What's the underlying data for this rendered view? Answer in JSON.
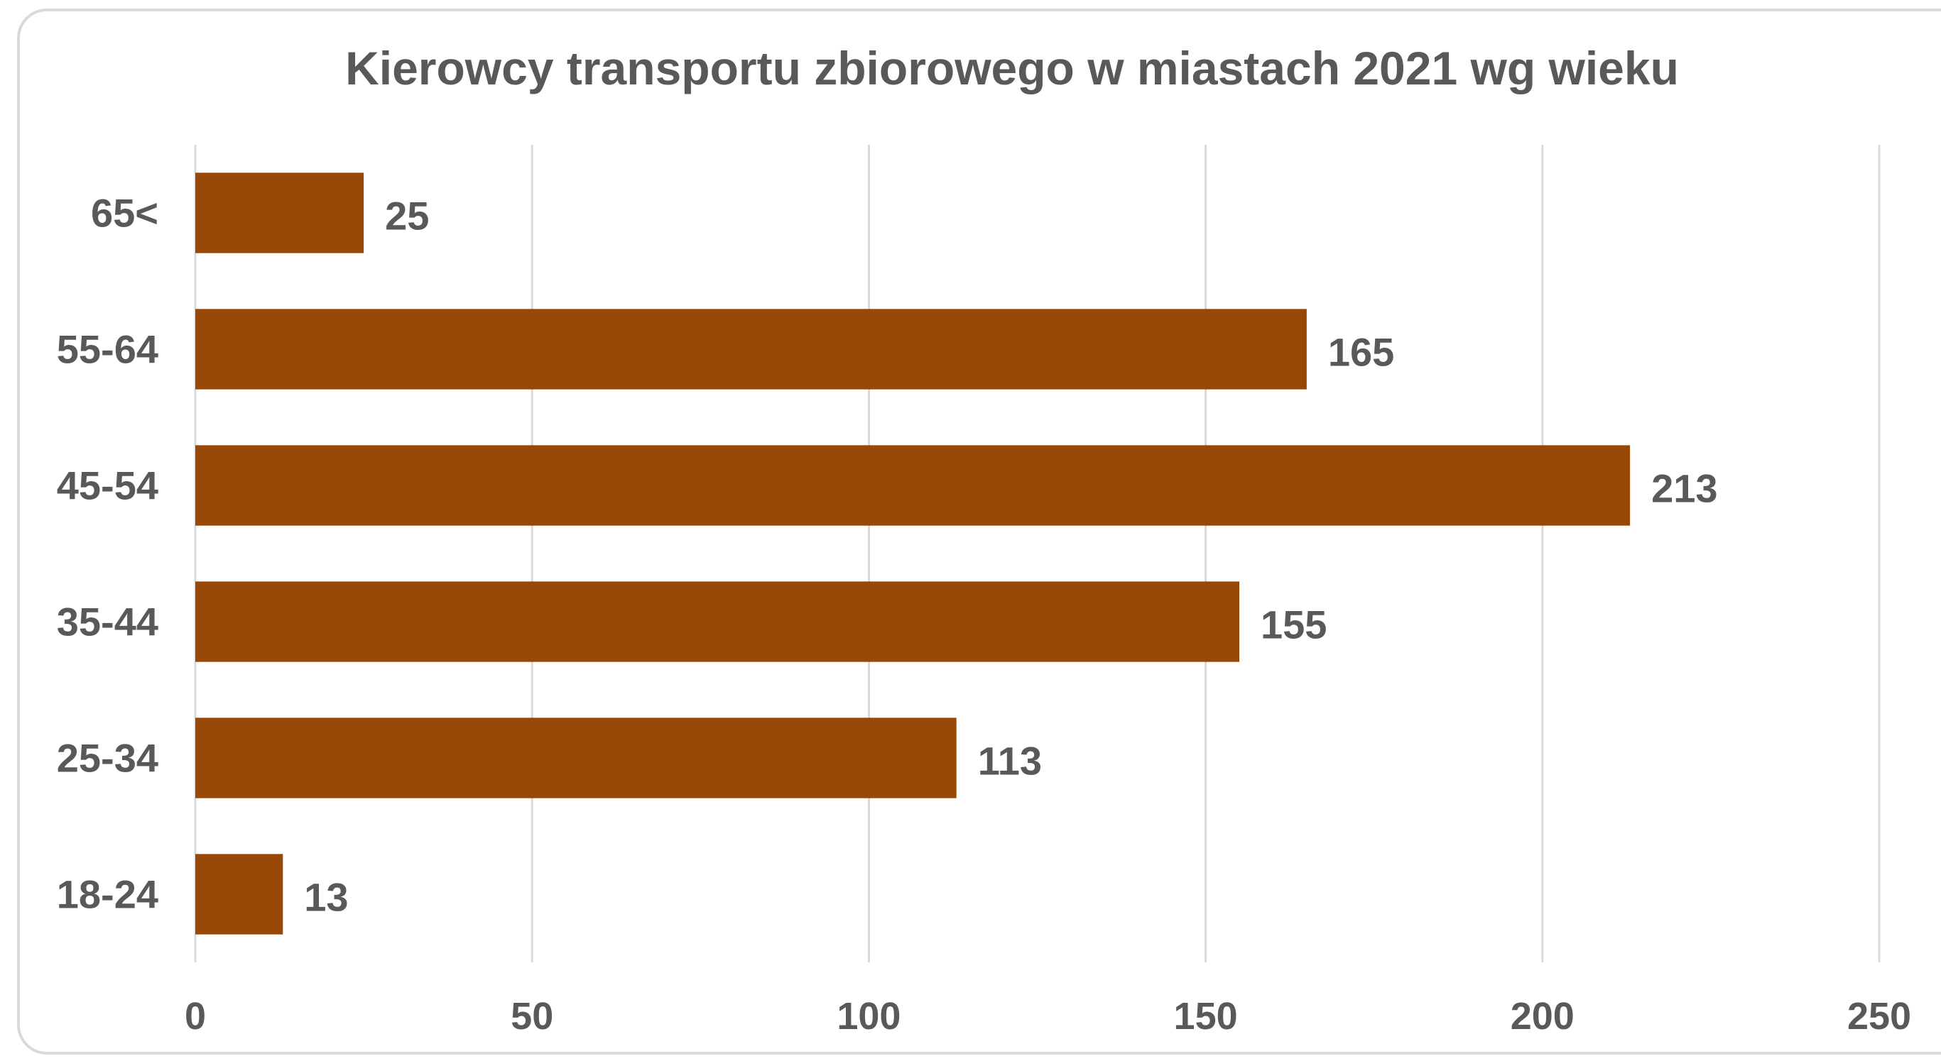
{
  "chart_data": {
    "type": "hbar",
    "title": "Kierowcy transportu zbiorowego w miastach 2021 wg wieku",
    "categories": [
      "18-24",
      "25-34",
      "35-44",
      "45-54",
      "55-64",
      "65<"
    ],
    "values": [
      13,
      113,
      155,
      213,
      165,
      25
    ],
    "color": "#974706",
    "xlim": [
      0,
      250
    ],
    "xticks": [
      0,
      50,
      100,
      150,
      200,
      250
    ],
    "grid": true
  }
}
